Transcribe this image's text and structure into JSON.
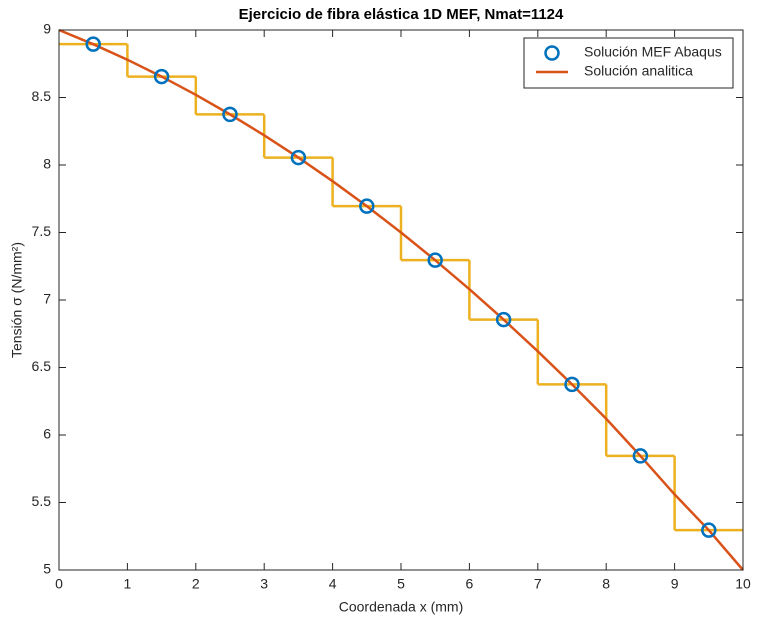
{
  "chart_data": {
    "type": "line",
    "title": "Ejercicio de fibra elástica 1D MEF, Nmat=1124",
    "x_label": "Coordenada x (mm)",
    "y_label": "Tensión σ (N/mm²)",
    "xlim": [
      0,
      10
    ],
    "xticks": [
      0,
      1,
      2,
      3,
      4,
      5,
      6,
      7,
      8,
      9,
      10
    ],
    "ylim": [
      5,
      9
    ],
    "yticks": [
      5,
      5.5,
      6,
      6.5,
      7,
      7.5,
      8,
      8.5,
      9
    ],
    "grid": false,
    "legend": "top-right",
    "series": [
      {
        "type": "scatter",
        "name": "Solución MEF Abaqus",
        "color": "#0072bd",
        "x": [
          0.5,
          1.5,
          2.5,
          3.5,
          4.5,
          5.5,
          6.5,
          7.5,
          8.5,
          9.5
        ],
        "values": [
          8.895,
          8.655,
          8.375,
          8.055,
          7.695,
          7.295,
          6.855,
          6.375,
          5.845,
          5.295
        ]
      },
      {
        "type": "line",
        "name": "Solución analitica",
        "color": "#d95319",
        "x": [
          0,
          0.5,
          1,
          1.5,
          2,
          2.5,
          3,
          3.5,
          4,
          4.5,
          5,
          5.5,
          6,
          6.5,
          7,
          7.5,
          8,
          8.5,
          9,
          9.5,
          10
        ],
        "values": [
          9,
          8.895,
          8.78,
          8.655,
          8.52,
          8.375,
          8.22,
          8.055,
          7.88,
          7.695,
          7.5,
          7.295,
          7.08,
          6.855,
          6.62,
          6.375,
          6.12,
          5.845,
          5.56,
          5.295,
          5
        ]
      },
      {
        "type": "step",
        "color": "#edb120",
        "bins": [
          0,
          1,
          2,
          3,
          4,
          5,
          6,
          7,
          8,
          9,
          10
        ],
        "values": [
          8.895,
          8.655,
          8.375,
          8.055,
          7.695,
          7.295,
          6.855,
          6.375,
          5.845,
          5.295
        ]
      }
    ]
  }
}
